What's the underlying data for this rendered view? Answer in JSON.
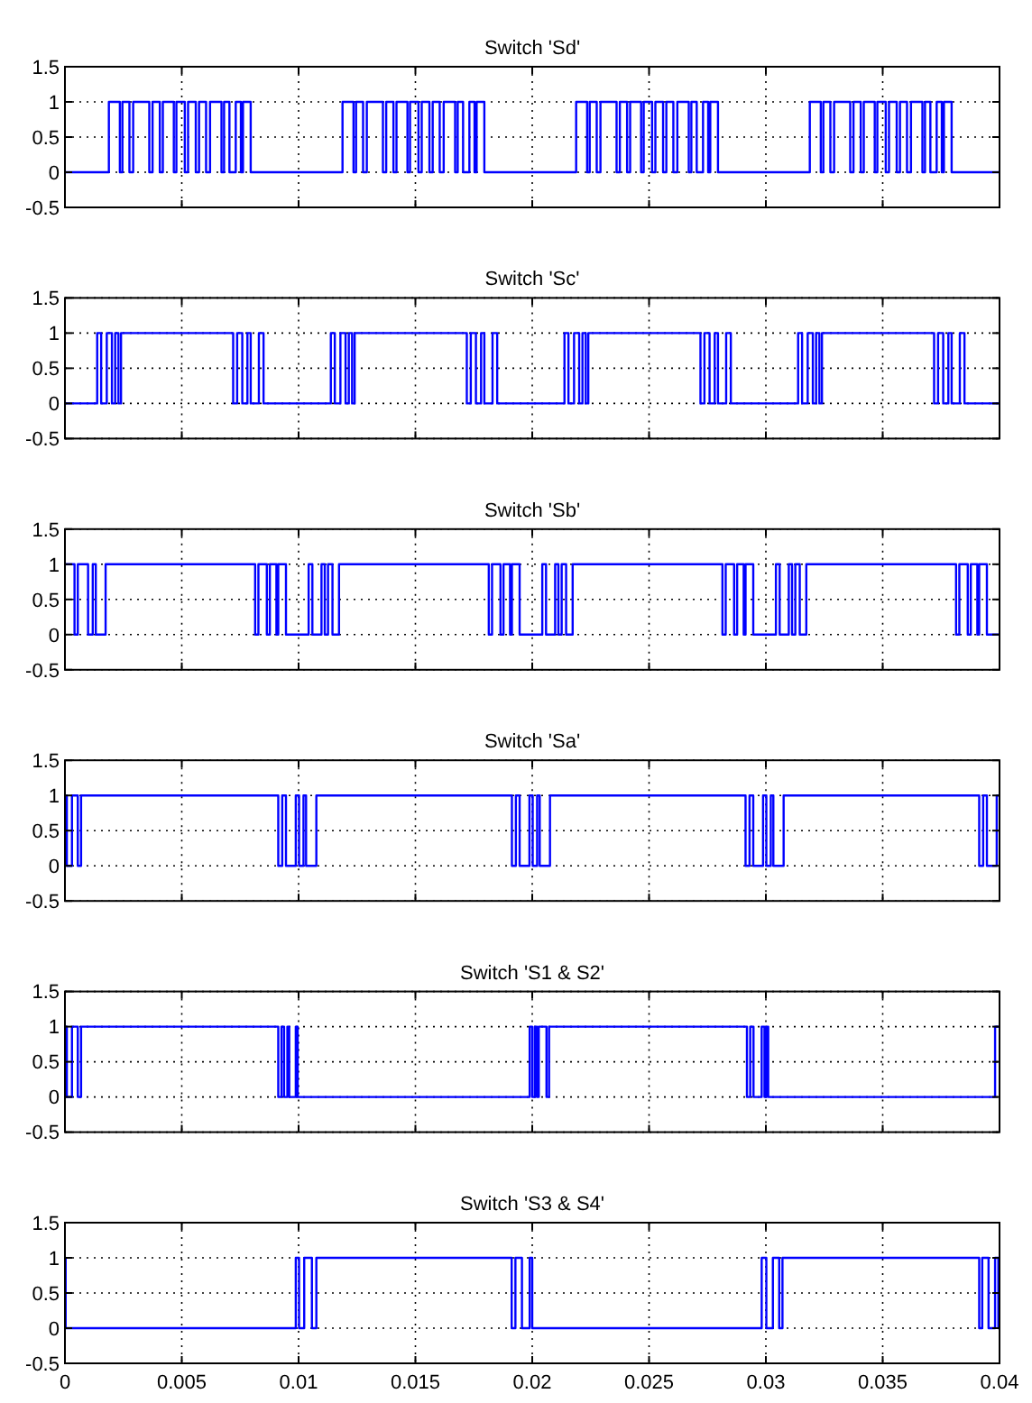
{
  "chart_data": [
    {
      "type": "step",
      "title": "Switch 'Sd'",
      "xlim": [
        0,
        0.04
      ],
      "ylim": [
        -0.5,
        1.5
      ],
      "xticks": [
        0,
        0.005,
        0.01,
        0.015,
        0.02,
        0.025,
        0.03,
        0.035,
        0.04
      ],
      "yticks": [
        -0.5,
        0,
        0.5,
        1,
        1.5
      ],
      "grid": true,
      "tick_labels": "y",
      "series": [
        {
          "color": "#0000ff",
          "x": [
            0,
            0.00188,
            0.00235,
            0.00246,
            0.00276,
            0.00292,
            0.00361,
            0.00375,
            0.00406,
            0.00419,
            0.00466,
            0.00477,
            0.00513,
            0.00527,
            0.0056,
            0.00574,
            0.00604,
            0.00621,
            0.0067,
            0.00681,
            0.00704,
            0.00731,
            0.00753,
            0.00762,
            0.00795,
            0.01188,
            0.01235,
            0.01246,
            0.01276,
            0.01292,
            0.01361,
            0.01375,
            0.01406,
            0.01419,
            0.01466,
            0.01477,
            0.01513,
            0.01527,
            0.0156,
            0.01574,
            0.01604,
            0.01621,
            0.0167,
            0.01681,
            0.01704,
            0.01731,
            0.01753,
            0.01762,
            0.01795,
            0.02188,
            0.02235,
            0.02246,
            0.02276,
            0.02292,
            0.02361,
            0.02375,
            0.02406,
            0.02419,
            0.02466,
            0.02477,
            0.02513,
            0.02527,
            0.0256,
            0.02574,
            0.02604,
            0.02621,
            0.0267,
            0.02681,
            0.02704,
            0.02731,
            0.02753,
            0.02762,
            0.02795,
            0.03188,
            0.03235,
            0.03246,
            0.03276,
            0.03292,
            0.03361,
            0.03375,
            0.03406,
            0.03419,
            0.03466,
            0.03477,
            0.03513,
            0.03527,
            0.0356,
            0.03574,
            0.03604,
            0.03621,
            0.0367,
            0.03681,
            0.03704,
            0.03731,
            0.03753,
            0.03762,
            0.03795,
            0.04
          ],
          "values": [
            0,
            1,
            0,
            1,
            0,
            1,
            0,
            1,
            0,
            1,
            0,
            1,
            0,
            1,
            0,
            1,
            0,
            1,
            0,
            1,
            0,
            1,
            0,
            1,
            0,
            1,
            0,
            1,
            0,
            1,
            0,
            1,
            0,
            1,
            0,
            1,
            0,
            1,
            0,
            1,
            0,
            1,
            0,
            1,
            0,
            1,
            0,
            1,
            0,
            1,
            0,
            1,
            0,
            1,
            0,
            1,
            0,
            1,
            0,
            1,
            0,
            1,
            0,
            1,
            0,
            1,
            0,
            1,
            0,
            1,
            0,
            1,
            0,
            1,
            0,
            1,
            0,
            1,
            0,
            1,
            0,
            1,
            0,
            1,
            0,
            1,
            0,
            1,
            0,
            1,
            0,
            1,
            0,
            1,
            0,
            1,
            0,
            0
          ]
        }
      ]
    },
    {
      "type": "step",
      "title": "Switch 'Sc'",
      "xlim": [
        0,
        0.04
      ],
      "ylim": [
        -0.5,
        1.5
      ],
      "xticks": [
        0,
        0.005,
        0.01,
        0.015,
        0.02,
        0.025,
        0.03,
        0.035,
        0.04
      ],
      "yticks": [
        -0.5,
        0,
        0.5,
        1,
        1.5
      ],
      "grid": true,
      "tick_labels": "y",
      "series": [
        {
          "color": "#0000ff",
          "x": [
            0,
            0.00138,
            0.00155,
            0.00179,
            0.00201,
            0.00215,
            0.00229,
            0.0024,
            0.0072,
            0.00737,
            0.00759,
            0.00781,
            0.00795,
            0.0083,
            0.0085,
            0.01138,
            0.01155,
            0.01179,
            0.01201,
            0.01215,
            0.01229,
            0.0124,
            0.0172,
            0.01737,
            0.01759,
            0.01781,
            0.01795,
            0.0183,
            0.0185,
            0.02138,
            0.02155,
            0.02179,
            0.02201,
            0.02215,
            0.02229,
            0.0224,
            0.0272,
            0.02737,
            0.02759,
            0.02781,
            0.02795,
            0.0283,
            0.0285,
            0.03138,
            0.03155,
            0.03179,
            0.03201,
            0.03215,
            0.03229,
            0.0324,
            0.0372,
            0.03737,
            0.03759,
            0.03781,
            0.03795,
            0.0383,
            0.0385,
            0.04
          ],
          "values": [
            0,
            1,
            0,
            1,
            0,
            1,
            0,
            1,
            0,
            1,
            0,
            1,
            0,
            1,
            0,
            1,
            0,
            1,
            0,
            1,
            0,
            1,
            0,
            1,
            0,
            1,
            0,
            1,
            0,
            1,
            0,
            1,
            0,
            1,
            0,
            1,
            0,
            1,
            0,
            1,
            0,
            1,
            0,
            1,
            0,
            1,
            0,
            1,
            0,
            1,
            0,
            1,
            0,
            1,
            0,
            1,
            0,
            0
          ]
        }
      ]
    },
    {
      "type": "step",
      "title": "Switch 'Sb'",
      "xlim": [
        0,
        0.04
      ],
      "ylim": [
        -0.5,
        1.5
      ],
      "xticks": [
        0,
        0.005,
        0.01,
        0.015,
        0.02,
        0.025,
        0.03,
        0.035,
        0.04
      ],
      "yticks": [
        -0.5,
        0,
        0.5,
        1,
        1.5
      ],
      "grid": true,
      "tick_labels": "y",
      "series": [
        {
          "color": "#0000ff",
          "x": [
            0,
            0.00041,
            0.00055,
            0.00099,
            0.00119,
            0.00132,
            0.00174,
            0.00814,
            0.00828,
            0.00864,
            0.00877,
            0.00905,
            0.00913,
            0.00946,
            0.01043,
            0.01059,
            0.01098,
            0.01112,
            0.01126,
            0.01145,
            0.01173,
            0.01814,
            0.01828,
            0.01864,
            0.01877,
            0.01905,
            0.01913,
            0.01946,
            0.02043,
            0.02059,
            0.02098,
            0.02112,
            0.02126,
            0.02145,
            0.02173,
            0.02814,
            0.02828,
            0.02864,
            0.02877,
            0.02905,
            0.02913,
            0.02946,
            0.03043,
            0.03059,
            0.03098,
            0.03112,
            0.03126,
            0.03145,
            0.03173,
            0.03814,
            0.03828,
            0.03864,
            0.03877,
            0.03905,
            0.03913,
            0.03946,
            0.04
          ],
          "values": [
            1,
            0,
            1,
            0,
            1,
            0,
            1,
            0,
            1,
            0,
            1,
            0,
            1,
            0,
            1,
            0,
            1,
            0,
            1,
            0,
            1,
            0,
            1,
            0,
            1,
            0,
            1,
            0,
            1,
            0,
            1,
            0,
            1,
            0,
            1,
            0,
            1,
            0,
            1,
            0,
            1,
            0,
            1,
            0,
            1,
            0,
            1,
            0,
            1,
            0,
            1,
            0,
            1,
            0,
            1,
            0,
            0
          ]
        }
      ]
    },
    {
      "type": "step",
      "title": "Switch 'Sa'",
      "xlim": [
        0,
        0.04
      ],
      "ylim": [
        -0.5,
        1.5
      ],
      "xticks": [
        0,
        0.005,
        0.01,
        0.015,
        0.02,
        0.025,
        0.03,
        0.035,
        0.04
      ],
      "yticks": [
        -0.5,
        0,
        0.5,
        1,
        1.5
      ],
      "grid": true,
      "tick_labels": "y",
      "series": [
        {
          "color": "#0000ff",
          "x": [
            0,
            8e-05,
            0.0003,
            0.00055,
            0.00069,
            0.00913,
            0.0093,
            0.00946,
            0.00988,
            0.01002,
            0.01021,
            0.01032,
            0.01076,
            0.01913,
            0.0193,
            0.01946,
            0.01988,
            0.02002,
            0.02021,
            0.02032,
            0.02076,
            0.02913,
            0.0293,
            0.02946,
            0.02988,
            0.03002,
            0.03021,
            0.03032,
            0.03076,
            0.03913,
            0.0393,
            0.03946,
            0.03988,
            0.04
          ],
          "values": [
            1,
            0,
            1,
            0,
            1,
            0,
            1,
            0,
            1,
            0,
            1,
            0,
            1,
            0,
            1,
            0,
            1,
            0,
            1,
            0,
            1,
            0,
            1,
            0,
            1,
            0,
            1,
            0,
            1,
            0,
            1,
            0,
            1,
            1
          ]
        }
      ]
    },
    {
      "type": "step",
      "title": "Switch 'S1 & S2'",
      "xlim": [
        0,
        0.04
      ],
      "ylim": [
        -0.5,
        1.5
      ],
      "xticks": [
        0,
        0.005,
        0.01,
        0.015,
        0.02,
        0.025,
        0.03,
        0.035,
        0.04
      ],
      "yticks": [
        -0.5,
        0,
        0.5,
        1,
        1.5
      ],
      "grid": true,
      "tick_labels": "y",
      "series": [
        {
          "color": "#0000ff",
          "x": [
            0,
            8e-05,
            0.0003,
            0.00055,
            0.00069,
            0.00913,
            0.00927,
            0.00938,
            0.00952,
            0.0096,
            0.00988,
            0.00996,
            0.01989,
            0.02,
            0.02011,
            0.0202,
            0.02028,
            0.02061,
            0.02072,
            0.02919,
            0.02933,
            0.02947,
            0.02982,
            0.02994,
            0.03002,
            0.0301,
            0.03981,
            0.04
          ],
          "values": [
            1,
            0,
            1,
            0,
            1,
            0,
            1,
            0,
            1,
            0,
            1,
            0,
            1,
            0,
            1,
            0,
            1,
            0,
            1,
            0,
            1,
            0,
            1,
            0,
            1,
            0,
            1,
            1
          ]
        }
      ]
    },
    {
      "type": "step",
      "title": "Switch 'S3 & S4'",
      "xlim": [
        0,
        0.04
      ],
      "ylim": [
        -0.5,
        1.5
      ],
      "xticks": [
        0,
        0.005,
        0.01,
        0.015,
        0.02,
        0.025,
        0.03,
        0.035,
        0.04
      ],
      "yticks": [
        -0.5,
        0,
        0.5,
        1,
        1.5
      ],
      "grid": true,
      "series": [
        {
          "color": "#0000ff",
          "x": [
            0,
            3e-05,
            0.00988,
            0.01002,
            0.01024,
            0.01057,
            0.01076,
            0.01912,
            0.01928,
            0.01956,
            0.01989,
            0.02,
            0.02982,
            0.03002,
            0.0303,
            0.03057,
            0.03071,
            0.03913,
            0.03926,
            0.03953,
            0.03981,
            0.03995,
            0.04
          ],
          "values": [
            1,
            0,
            1,
            0,
            1,
            0,
            1,
            0,
            1,
            0,
            1,
            0,
            1,
            0,
            1,
            0,
            1,
            0,
            1,
            0,
            1,
            0,
            0
          ]
        }
      ]
    }
  ]
}
